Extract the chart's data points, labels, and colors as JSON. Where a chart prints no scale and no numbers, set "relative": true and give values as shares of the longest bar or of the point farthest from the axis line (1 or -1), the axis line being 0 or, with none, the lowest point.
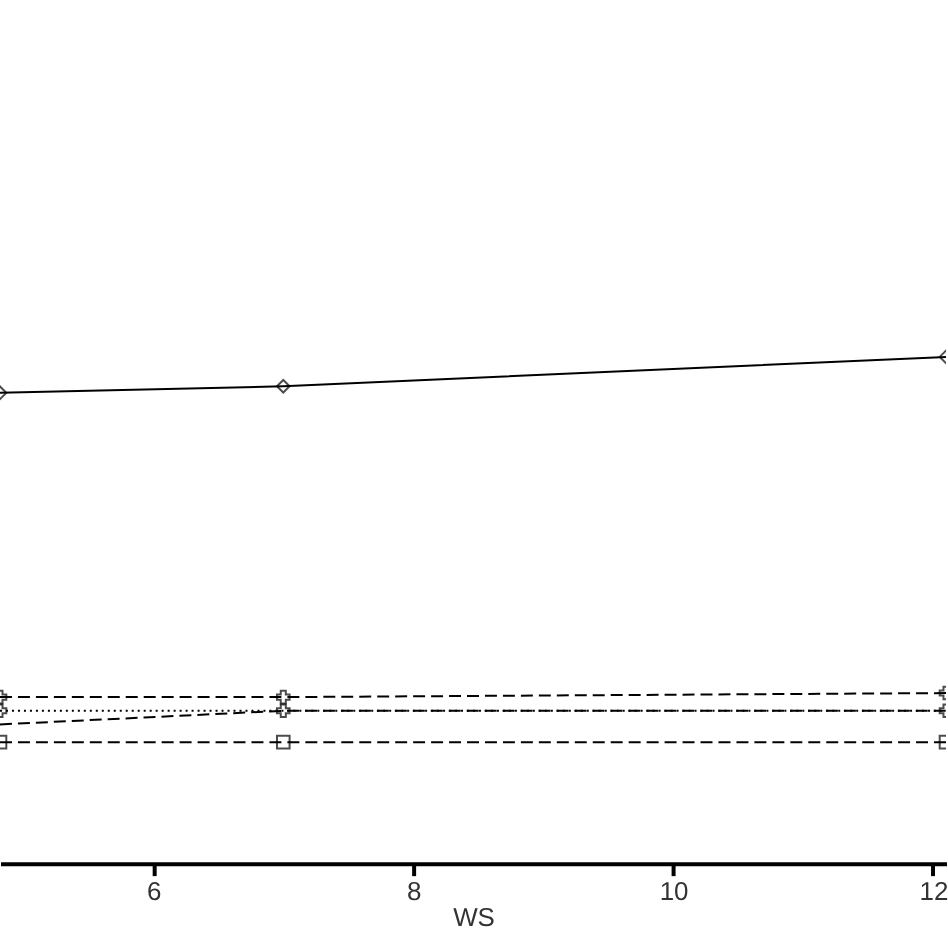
{
  "chart_data": {
    "type": "line",
    "xlabel": "WS",
    "relative": true,
    "x": [
      4.82,
      7,
      12.1
    ],
    "xlim": [
      4.82,
      12.1
    ],
    "xticks": [
      6,
      8,
      10,
      12
    ],
    "tick_labels": "x",
    "grid": false,
    "series": [
      {
        "color": "#000000",
        "line_style": "solid",
        "marker": "diamond",
        "values": [
          0.929,
          0.942,
          1
        ]
      },
      {
        "color": "#000000",
        "line_style": "dashed",
        "marker": "cross",
        "values": [
          0.328,
          0.328,
          0.336
        ]
      },
      {
        "color": "#000000",
        "line_style": "dotted",
        "marker": "cross",
        "values": [
          0.301,
          0.301,
          0.301
        ]
      },
      {
        "color": "#000000",
        "line_style": "dashed",
        "marker": "none",
        "values": [
          0.274,
          0.301,
          0.301
        ]
      },
      {
        "color": "#000000",
        "line_style": "dashed",
        "marker": "square",
        "values": [
          0.239,
          0.239,
          0.239
        ]
      }
    ]
  }
}
